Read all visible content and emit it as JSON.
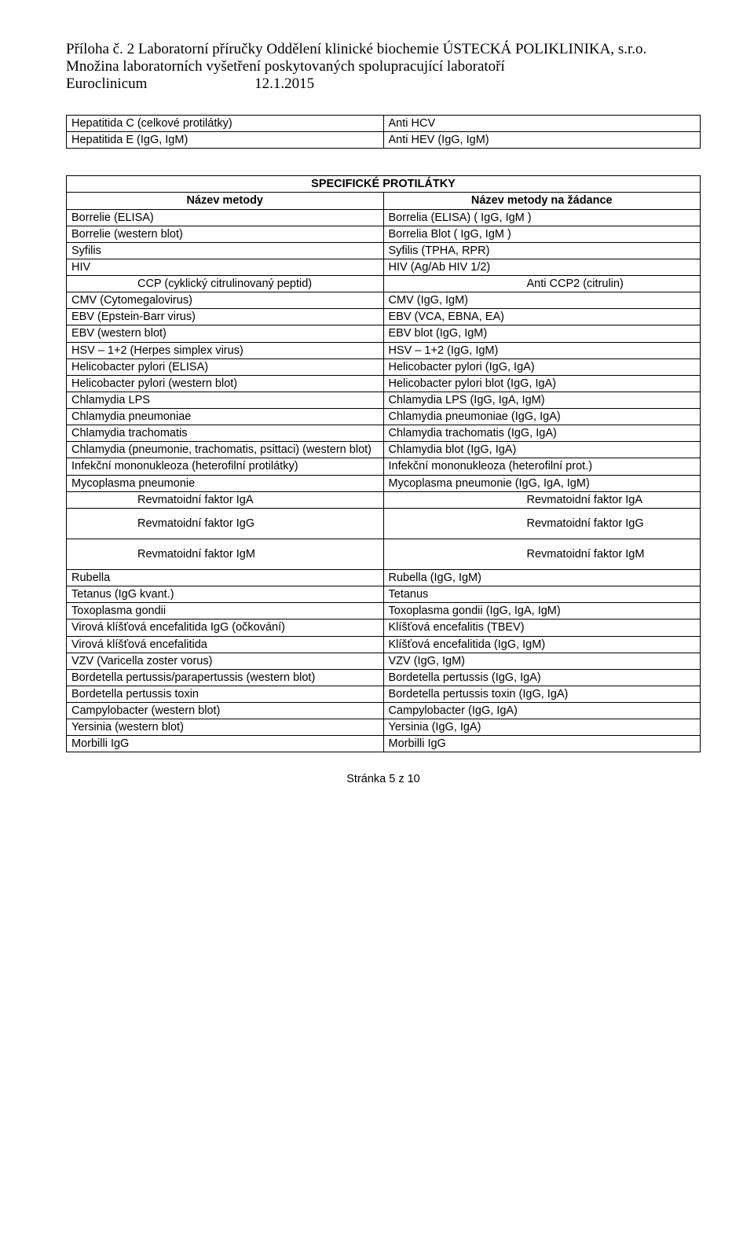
{
  "header": {
    "line1": "Příloha č. 2 Laboratorní příručky Oddělení klinické biochemie ÚSTECKÁ POLIKLINIKA, s.r.o.",
    "line2": "Množina laboratorních vyšetření poskytovaných spolupracující laboratoří",
    "line3_lab": "Euroclinicum",
    "line3_date": "12.1.2015"
  },
  "table_hep": {
    "rows": [
      [
        "Hepatitida C (celkové protilátky)",
        "Anti HCV"
      ],
      [
        "Hepatitida E (IgG, IgM)",
        "Anti HEV (IgG, IgM)"
      ]
    ]
  },
  "table_main": {
    "section_title": "SPECIFICKÉ PROTILÁTKY",
    "col_a": "Název metody",
    "col_b": "Název metody na žádance",
    "rows": [
      [
        "Borrelie (ELISA)",
        "Borrelia (ELISA) ( IgG, IgM )"
      ],
      [
        "Borrelie (western blot)",
        "Borrelia Blot ( IgG, IgM )"
      ],
      [
        " Syfilis",
        "Syfilis (TPHA, RPR)"
      ],
      [
        "HIV",
        "HIV (Ag/Ab HIV 1/2)"
      ]
    ],
    "ccp_left": "CCP (cyklický citrulinovaný peptid)",
    "ccp_right": "Anti CCP2 (citrulin)",
    "rows2": [
      [
        "CMV (Cytomegalovirus)",
        "CMV (IgG, IgM)"
      ],
      [
        "EBV (Epstein-Barr virus)",
        "EBV (VCA, EBNA, EA)"
      ],
      [
        "EBV (western blot)",
        "EBV blot (IgG, IgM)"
      ],
      [
        "HSV – 1+2 (Herpes simplex virus)",
        "HSV – 1+2 (IgG, IgM)"
      ],
      [
        "Helicobacter pylori (ELISA)",
        "Helicobacter pylori (IgG, IgA)"
      ],
      [
        "Helicobacter pylori (western blot)",
        "Helicobacter pylori blot (IgG, IgA)"
      ],
      [
        "Chlamydia LPS",
        "Chlamydia LPS (IgG, IgA, IgM)"
      ],
      [
        "Chlamydia pneumoniae",
        "Chlamydia pneumoniae (IgG, IgA)"
      ],
      [
        "Chlamydia trachomatis",
        "Chlamydia trachomatis (IgG, IgA)"
      ],
      [
        "Chlamydia (pneumonie, trachomatis, psittaci) (western blot)",
        "Chlamydia blot (IgG, IgA)"
      ],
      [
        "Infekční mononukleoza (heterofilní protilátky)",
        "Infekční mononukleoza (heterofilní prot.)"
      ],
      [
        "Mycoplasma pneumonie",
        "Mycoplasma pneumonie (IgG, IgA, IgM)"
      ]
    ],
    "rf_rows": [
      [
        "Revmatoidní faktor IgA",
        "Revmatoidní faktor IgA"
      ],
      [
        "Revmatoidní faktor IgG",
        "Revmatoidní faktor IgG"
      ],
      [
        "Revmatoidní faktor IgM",
        "Revmatoidní faktor IgM"
      ]
    ],
    "rows3": [
      [
        "Rubella",
        "Rubella (IgG, IgM)"
      ],
      [
        "Tetanus (IgG kvant.)",
        "Tetanus"
      ],
      [
        "Toxoplasma gondii",
        "Toxoplasma gondii (IgG, IgA, IgM)"
      ],
      [
        "Virová klíšťová encefalitida IgG (očkování)",
        "Klíšťová encefalitis (TBEV)"
      ],
      [
        "Virová klíšťová encefalitida",
        "Klíšťová encefalitida (IgG, IgM)"
      ],
      [
        "VZV (Varicella zoster vorus)",
        "VZV (IgG, IgM)"
      ],
      [
        "Bordetella pertussis/parapertussis (western blot)",
        "Bordetella pertussis (IgG, IgA)"
      ],
      [
        "Bordetella pertussis toxin",
        "Bordetella pertussis toxin (IgG, IgA)"
      ],
      [
        "Campylobacter (western blot)",
        "Campylobacter (IgG, IgA)"
      ],
      [
        "Yersinia (western blot)",
        "Yersinia (IgG, IgA)"
      ],
      [
        "Morbilli IgG",
        "Morbilli IgG"
      ]
    ]
  },
  "footer": "Stránka 5 z 10"
}
